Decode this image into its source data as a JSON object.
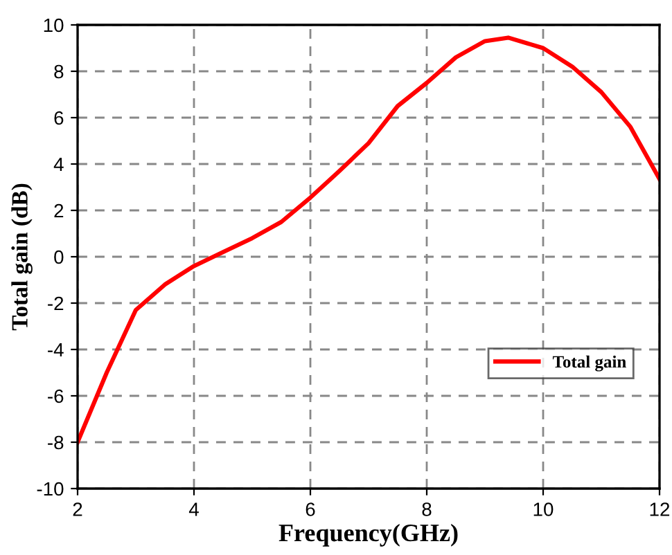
{
  "chart_data": {
    "type": "line",
    "xlabel": "Frequency(GHz)",
    "ylabel": "Total gain (dB)",
    "xlim": [
      2,
      12
    ],
    "ylim": [
      -10,
      10
    ],
    "xticks": [
      2,
      4,
      6,
      8,
      10,
      12
    ],
    "yticks": [
      -10,
      -8,
      -6,
      -4,
      -2,
      0,
      2,
      4,
      6,
      8,
      10
    ],
    "grid": true,
    "legend": "bottom right",
    "marker": "none",
    "line_style": "solid",
    "series": [
      {
        "name": "Total gain",
        "color": "#ff0000",
        "x": [
          2,
          2.5,
          3,
          3.5,
          4,
          4.5,
          5,
          5.5,
          6,
          6.5,
          7,
          7.5,
          8,
          8.5,
          9,
          9.4,
          10,
          10.5,
          11,
          11.5,
          12
        ],
        "values": [
          -8,
          -5.0,
          -2.3,
          -1.2,
          -0.4,
          0.2,
          0.8,
          1.5,
          2.55,
          3.7,
          4.9,
          6.5,
          7.5,
          8.6,
          9.3,
          9.45,
          9.0,
          8.2,
          7.1,
          5.6,
          3.35
        ]
      }
    ]
  }
}
